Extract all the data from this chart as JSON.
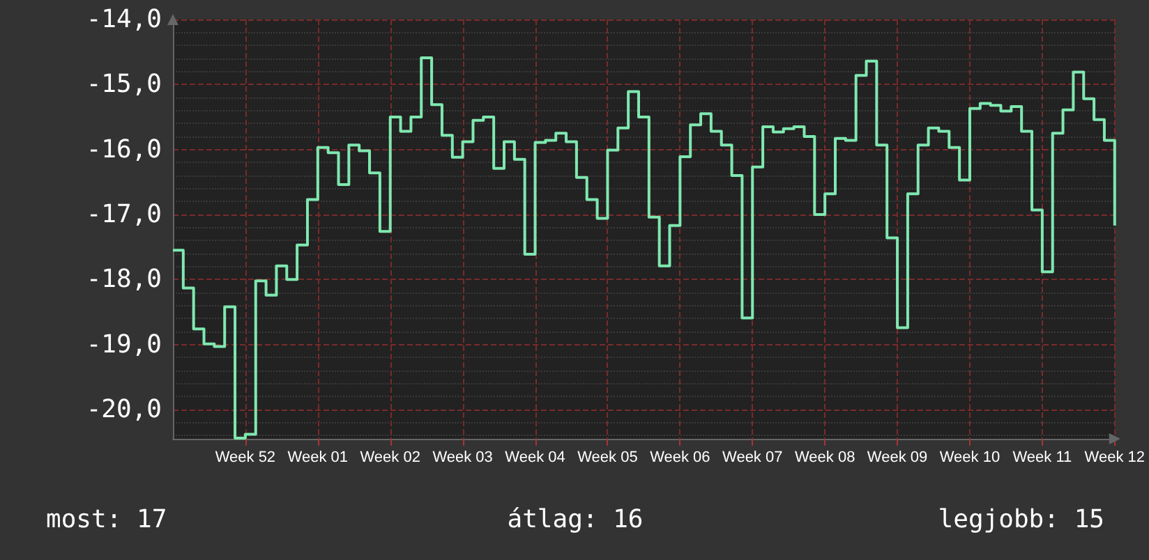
{
  "chart_data": {
    "type": "step",
    "categories": [
      null,
      null,
      null,
      null,
      null,
      null,
      null,
      "Week 52",
      null,
      null,
      null,
      null,
      null,
      null,
      "Week 01",
      null,
      null,
      null,
      null,
      null,
      null,
      "Week 02",
      null,
      null,
      null,
      null,
      null,
      null,
      "Week 03",
      null,
      null,
      null,
      null,
      null,
      null,
      "Week 04",
      null,
      null,
      null,
      null,
      null,
      null,
      "Week 05",
      null,
      null,
      null,
      null,
      null,
      null,
      "Week 06",
      null,
      null,
      null,
      null,
      null,
      null,
      "Week 07",
      null,
      null,
      null,
      null,
      null,
      null,
      "Week 08",
      null,
      null,
      null,
      null,
      null,
      null,
      "Week 09",
      null,
      null,
      null,
      null,
      null,
      null,
      "Week 10",
      null,
      null,
      null,
      null,
      null,
      null,
      "Week 11",
      null,
      null,
      null,
      null,
      null,
      null,
      "Week 12"
    ],
    "series": [
      {
        "color": "#7fe8b0",
        "values": [
          -17.55,
          -18.13,
          -18.76,
          -18.99,
          -19.03,
          -18.42,
          -20.44,
          -20.38,
          -18.02,
          -18.24,
          -17.79,
          -18.0,
          -17.47,
          -16.77,
          -15.97,
          -16.05,
          -16.54,
          -15.93,
          -16.02,
          -16.36,
          -17.26,
          -15.5,
          -15.72,
          -15.5,
          -14.59,
          -15.31,
          -15.78,
          -16.12,
          -15.88,
          -15.55,
          -15.5,
          -16.29,
          -15.88,
          -16.15,
          -17.61,
          -15.89,
          -15.86,
          -15.75,
          -15.88,
          -16.43,
          -16.77,
          -17.06,
          -16.01,
          -15.67,
          -15.11,
          -15.5,
          -17.04,
          -17.79,
          -17.17,
          -16.11,
          -15.62,
          -15.45,
          -15.72,
          -15.93,
          -16.4,
          -18.59,
          -16.27,
          -15.65,
          -15.73,
          -15.68,
          -15.65,
          -15.8,
          -17.0,
          -16.68,
          -15.83,
          -15.86,
          -14.86,
          -14.64,
          -15.93,
          -17.36,
          -18.74,
          -16.68,
          -15.93,
          -15.67,
          -15.72,
          -15.97,
          -16.47,
          -15.37,
          -15.29,
          -15.32,
          -15.41,
          -15.34,
          -15.72,
          -16.93,
          -17.88,
          -15.75,
          -15.39,
          -14.81,
          -15.22,
          -15.54,
          -15.86,
          -17.17
        ]
      }
    ],
    "ylim": [
      -20.45,
      -14.0
    ],
    "yticks": [
      {
        "value": -14,
        "label": "-14,0"
      },
      {
        "value": -15,
        "label": "-15,0"
      },
      {
        "value": -16,
        "label": "-16,0"
      },
      {
        "value": -17,
        "label": "-17,0"
      },
      {
        "value": -18,
        "label": "-18,0"
      },
      {
        "value": -19,
        "label": "-19,0"
      },
      {
        "value": -20,
        "label": "-20,0"
      }
    ],
    "grid": true,
    "marker": "none",
    "line_style": "solid",
    "annotations": [
      "most: 17",
      "átlag: 16",
      "legjobb: 15"
    ]
  }
}
